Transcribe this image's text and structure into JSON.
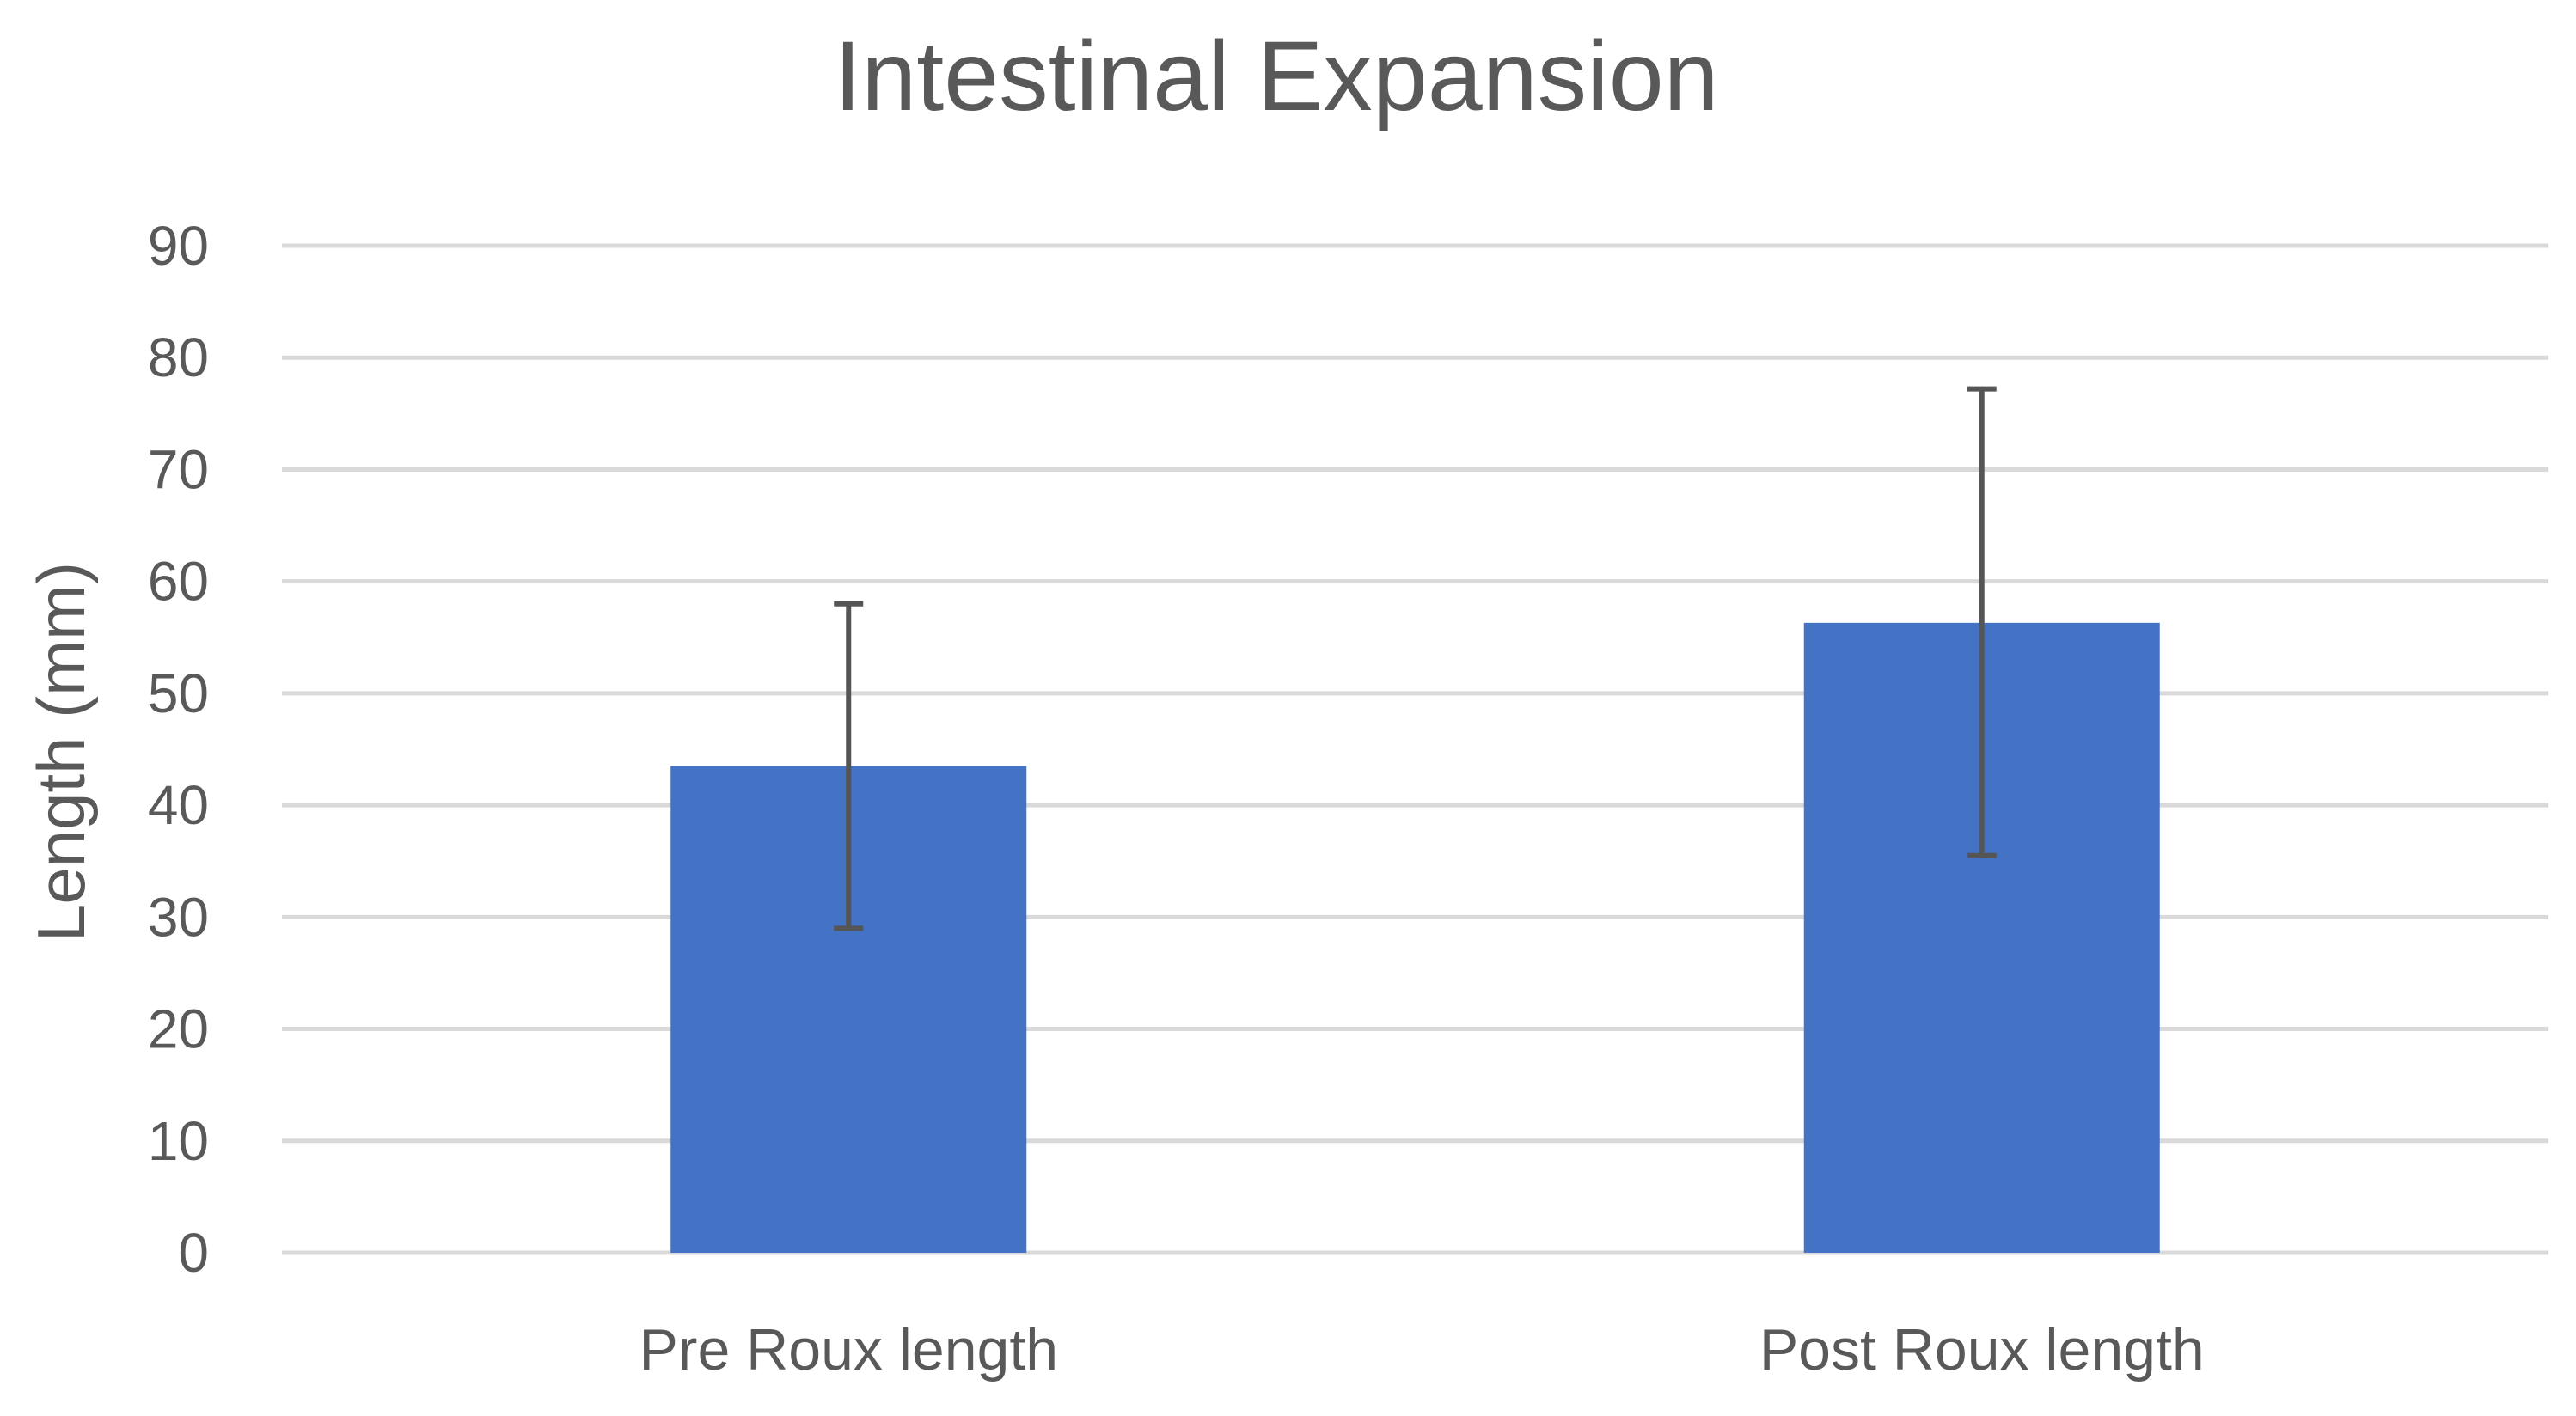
{
  "chart_data": {
    "type": "bar",
    "title": "Intestinal Expansion",
    "xlabel": "",
    "ylabel": "Length (mm)",
    "ylim": [
      0,
      90
    ],
    "yticks": [
      0,
      10,
      20,
      30,
      40,
      50,
      60,
      70,
      80,
      90
    ],
    "categories": [
      "Pre Roux length",
      "Post Roux length"
    ],
    "values": [
      43.5,
      56.3
    ],
    "error_bars": [
      {
        "low": 29.0,
        "high": 58.0
      },
      {
        "low": 35.5,
        "high": 77.2
      }
    ],
    "grid": true,
    "legend": "none",
    "bar_color": "#4472c4",
    "error_color": "#555555",
    "grid_color": "#d9d9d9",
    "text_color": "#595959"
  }
}
